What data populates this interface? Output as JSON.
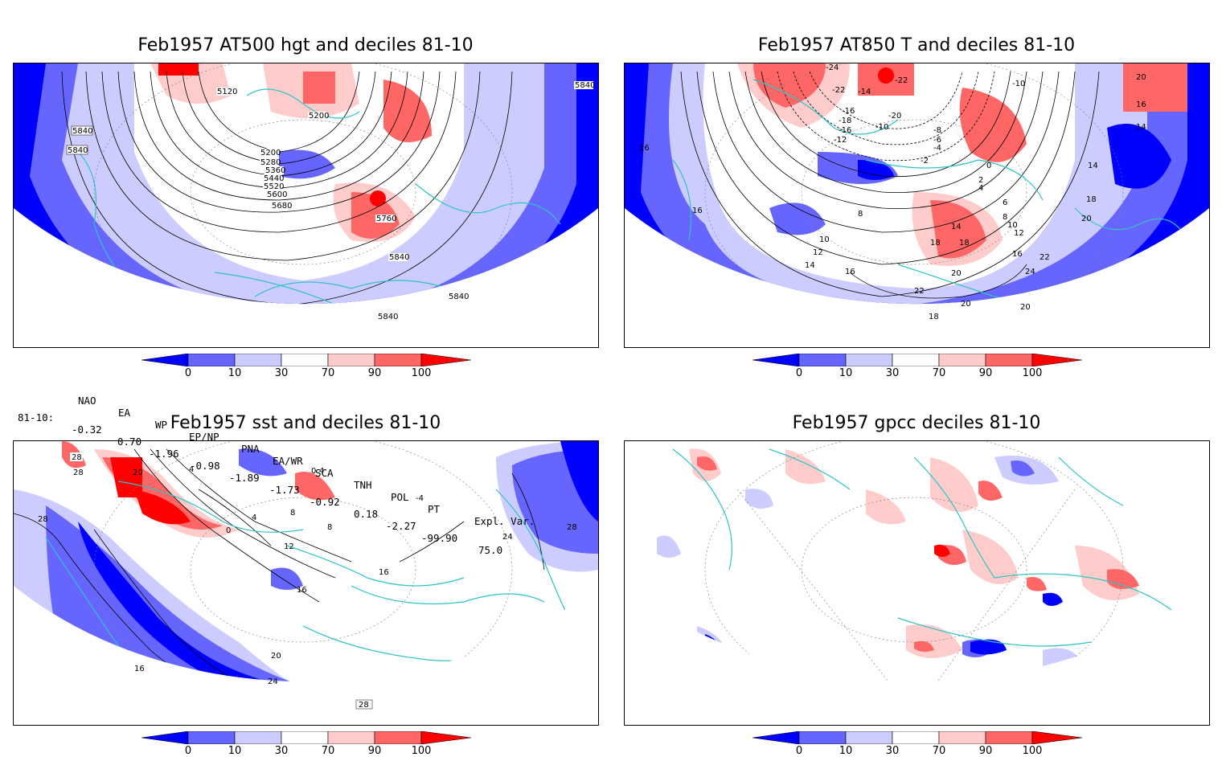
{
  "panels": [
    {
      "title": "Feb1957 AT500 hgt and deciles 81-10"
    },
    {
      "title": "Feb1957 AT850 T and deciles 81-10"
    },
    {
      "title": "Feb1957 sst and deciles 81-10"
    },
    {
      "title": "Feb1957 gpcc deciles 81-10"
    }
  ],
  "colorbar": {
    "labels": [
      "0",
      "10",
      "30",
      "70",
      "90",
      "100"
    ],
    "colors": [
      "#0000ff",
      "#6666ff",
      "#ccccff",
      "#ffffff",
      "#ffcccc",
      "#ff6666",
      "#ff0000"
    ]
  },
  "indices": {
    "headers": [
      "NAO",
      "EA",
      "WP",
      "EP/NP",
      "PNA",
      "EA/WR",
      "SCA",
      "TNH",
      "POL",
      "PT",
      "Expl. Var."
    ],
    "row_label": "81-10:",
    "values": [
      "-0.32",
      "0.70",
      "-1.96",
      "-0.98",
      "-1.89",
      "-1.73",
      "-0.92",
      "0.18",
      "-2.27",
      "-99.90",
      "75.0"
    ]
  },
  "contour_labels": {
    "hgt": [
      "5120",
      "5200",
      "5200",
      "5280",
      "5360",
      "5440",
      "5520",
      "5600",
      "5680",
      "5760",
      "5840",
      "5840",
      "5840",
      "5840",
      "5840",
      "5840"
    ],
    "t850": [
      "-24",
      "-22",
      "-14",
      "-22",
      "-16",
      "-18",
      "-16",
      "-10",
      "-20",
      "-12",
      "-10",
      "-8",
      "-6",
      "-4",
      "-2",
      "0",
      "2",
      "4",
      "6",
      "8",
      "10",
      "12",
      "14",
      "16",
      "18",
      "20",
      "22",
      "24",
      "8",
      "10",
      "12",
      "14",
      "16",
      "18",
      "20",
      "22",
      "16",
      "14",
      "14",
      "18",
      "20",
      "16",
      "20",
      "16",
      "18",
      "20"
    ],
    "sst": [
      "28",
      "28",
      "20",
      "4",
      "0",
      "4",
      "8",
      "12",
      "16",
      "16",
      "20",
      "24",
      "28",
      "28",
      "24",
      "28",
      "4",
      "0",
      "-4",
      "8",
      "16"
    ]
  }
}
